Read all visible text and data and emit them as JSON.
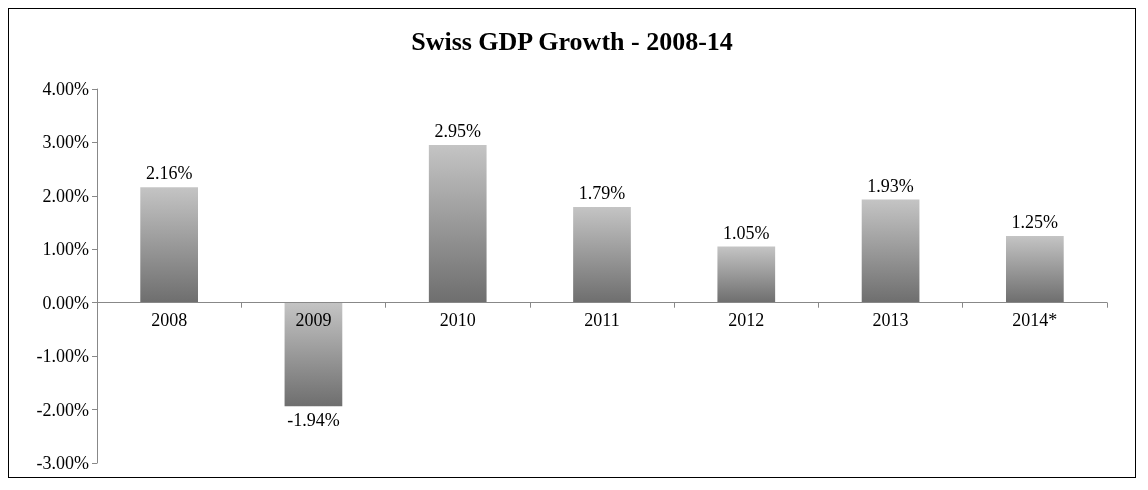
{
  "chart_data": {
    "type": "bar",
    "title": "Swiss GDP Growth - 2008-14",
    "categories": [
      "2008",
      "2009",
      "2010",
      "2011",
      "2012",
      "2013",
      "2014*"
    ],
    "values": [
      2.16,
      -1.94,
      2.95,
      1.79,
      1.05,
      1.93,
      1.25
    ],
    "value_labels": [
      "2.16%",
      "-1.94%",
      "2.95%",
      "1.79%",
      "1.05%",
      "1.93%",
      "1.25%"
    ],
    "color": "#6e6e6e",
    "ylim": [
      -3,
      4
    ],
    "yticks": [
      {
        "value": -3,
        "label": "-3.00%"
      },
      {
        "value": -2,
        "label": "-2.00%"
      },
      {
        "value": -1,
        "label": "-1.00%"
      },
      {
        "value": 0,
        "label": "0.00%"
      },
      {
        "value": 1,
        "label": "1.00%"
      },
      {
        "value": 2,
        "label": "2.00%"
      },
      {
        "value": 3,
        "label": "3.00%"
      },
      {
        "value": 4,
        "label": "4.00%"
      }
    ],
    "line_style": "solid"
  }
}
